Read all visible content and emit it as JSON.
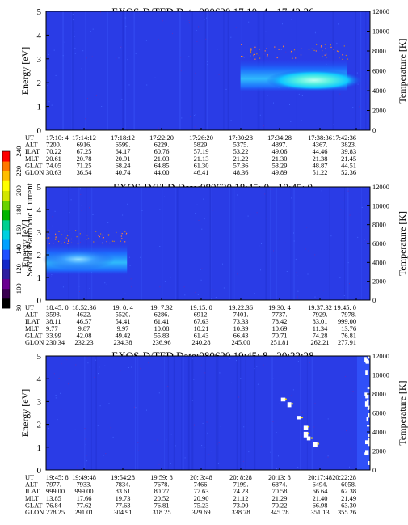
{
  "chart_data": [
    {
      "type": "heatmap",
      "title": "EXOS-D/TED   Date:980620  17:10: 4 - 17:42:36",
      "ylabel": "Energy [eV]",
      "y2label": "Temperature [K]",
      "ylim": [
        0,
        5
      ],
      "y2lim": [
        0,
        12000
      ],
      "yticks": [
        "0",
        "1",
        "2",
        "3",
        "4",
        "5"
      ],
      "y2ticks": [
        "0",
        "2000",
        "4000",
        "6000",
        "8000",
        "10000",
        "12000"
      ],
      "footer": {
        "labels": [
          "UT",
          "ALT",
          "ILAT",
          "MLT",
          "GLAT",
          "GLON"
        ],
        "columns": [
          [
            "17:10: 4",
            "7200.",
            "70.22",
            "20.61",
            "74.05",
            "30.63"
          ],
          [
            "17:14:12",
            "6916.",
            "67.25",
            "20.78",
            "71.25",
            "36.54"
          ],
          [
            "17:18:12",
            "6599.",
            "64.17",
            "20.91",
            "68.24",
            "40.74"
          ],
          [
            "17:22:20",
            "6229.",
            "60.76",
            "21.03",
            "64.85",
            "44.00"
          ],
          [
            "17:26:20",
            "5829.",
            "57.19",
            "21.13",
            "61.30",
            "46.41"
          ],
          [
            "17:30:28",
            "5375.",
            "53.22",
            "21.22",
            "57.36",
            "48.36"
          ],
          [
            "17:34:28",
            "4897.",
            "49.06",
            "21.30",
            "53.29",
            "49.89"
          ],
          [
            "17:38:36",
            "4367.",
            "44.46",
            "21.38",
            "48.87",
            "51.22"
          ],
          [
            "17:42:36",
            "3823.",
            "39.83",
            "21.45",
            "44.51",
            "52.36"
          ]
        ]
      },
      "features": [
        {
          "kind": "band",
          "t_range": [
            0.6,
            0.93
          ],
          "energy_center": 2.3,
          "energy_halfwidth": 0.7,
          "peak_energy": 2.1,
          "label": "enhanced emission 17:31 - 17:42"
        }
      ]
    },
    {
      "type": "heatmap",
      "title": "EXOS-D/TED   Date:980620  18:45: 0 - 19:45: 0",
      "ylabel": "Energy [eV]",
      "y2label": "Temperature [K]",
      "ylim": [
        0,
        5
      ],
      "y2lim": [
        0,
        12000
      ],
      "yticks": [
        "0",
        "1",
        "2",
        "3",
        "4",
        "5"
      ],
      "y2ticks": [
        "0",
        "2000",
        "4000",
        "6000",
        "8000",
        "10000",
        "12000"
      ],
      "footer": {
        "labels": [
          "UT",
          "ALT",
          "ILAT",
          "MLT",
          "GLAT",
          "GLON"
        ],
        "columns": [
          [
            "18:45: 0",
            "3593.",
            "38.11",
            "9.77",
            "33.99",
            "230.34"
          ],
          [
            "18:52:36",
            "4622.",
            "46.57",
            "9.87",
            "42.08",
            "232.23"
          ],
          [
            "19: 0: 4",
            "5520.",
            "54.41",
            "9.97",
            "49.42",
            "234.38"
          ],
          [
            "19: 7:32",
            "6286.",
            "61.41",
            "10.08",
            "55.83",
            "236.96"
          ],
          [
            "19:15: 0",
            "6912.",
            "67.63",
            "10.21",
            "61.43",
            "240.28"
          ],
          [
            "19:22:36",
            "7401.",
            "73.33",
            "10.39",
            "66.43",
            "245.00"
          ],
          [
            "19:30: 4",
            "7737.",
            "78.42",
            "10.69",
            "70.71",
            "251.81"
          ],
          [
            "19:37:32",
            "7929.",
            "83.01",
            "11.34",
            "74.28",
            "262.21"
          ],
          [
            "19:45: 0",
            "7978.",
            "999.00",
            "13.76",
            "76.81",
            "277.91"
          ]
        ]
      },
      "features": [
        {
          "kind": "band",
          "t_range": [
            0.0,
            0.25
          ],
          "energy_center": 1.8,
          "energy_halfwidth": 0.7,
          "peak_energy": 1.8,
          "label": "enhanced emission 18:45 - 19:00"
        }
      ]
    },
    {
      "type": "heatmap",
      "title": "EXOS-D/TED   Date:980620  19:45: 8 - 20:22:28",
      "ylabel": "Energy [eV]",
      "y2label": "Temperature [K]",
      "ylim": [
        0,
        5
      ],
      "y2lim": [
        0,
        12000
      ],
      "yticks": [
        "0",
        "1",
        "2",
        "3",
        "4",
        "5"
      ],
      "y2ticks": [
        "0",
        "2000",
        "4000",
        "6000",
        "8000",
        "10000",
        "12000"
      ],
      "footer": {
        "labels": [
          "UT",
          "ALT",
          "ILAT",
          "MLT",
          "GLAT",
          "GLON"
        ],
        "columns": [
          [
            "19:45: 8",
            "7977.",
            "999.00",
            "13.85",
            "76.84",
            "278.25"
          ],
          [
            "19:49:48",
            "7933.",
            "999.00",
            "17.66",
            "77.62",
            "291.01"
          ],
          [
            "19:54:28",
            "7834.",
            "83.61",
            "19.73",
            "77.63",
            "304.91"
          ],
          [
            "19:59: 8",
            "7678.",
            "80.77",
            "20.52",
            "76.81",
            "318.25"
          ],
          [
            "20: 3:48",
            "7466.",
            "77.63",
            "20.90",
            "75.23",
            "329.69"
          ],
          [
            "20: 8:28",
            "7199.",
            "74.23",
            "21.12",
            "73.00",
            "338.78"
          ],
          [
            "20:13: 8",
            "6874.",
            "70.58",
            "21.29",
            "70.22",
            "345.78"
          ],
          [
            "20:17:48",
            "6494.",
            "66.64",
            "21.40",
            "66.98",
            "351.13"
          ],
          [
            "20:22:28",
            "6058.",
            "62.38",
            "21.49",
            "63.30",
            "355.26"
          ]
        ]
      },
      "features": [
        {
          "kind": "spots",
          "t_range": [
            0.7,
            0.84
          ],
          "energy_range": [
            1.0,
            3.2
          ],
          "label": "bright spots near 20:13"
        },
        {
          "kind": "edge",
          "t_range": [
            0.96,
            1.0
          ],
          "energy_range": [
            0,
            5
          ],
          "label": "white edge 20:22"
        }
      ]
    }
  ],
  "colorbar": {
    "label": "Second Harmonic Current",
    "ticks": [
      "80",
      "100",
      "120",
      "140",
      "160",
      "180",
      "200",
      "220",
      "240"
    ],
    "colors": [
      "#000000",
      "#3a0050",
      "#6a0090",
      "#2e1ea0",
      "#1428c8",
      "#1e50ff",
      "#00a0ff",
      "#00d0e0",
      "#00d090",
      "#00b400",
      "#6ad200",
      "#d2e600",
      "#ffff00",
      "#ffbe00",
      "#ff7800",
      "#ff0000"
    ]
  }
}
